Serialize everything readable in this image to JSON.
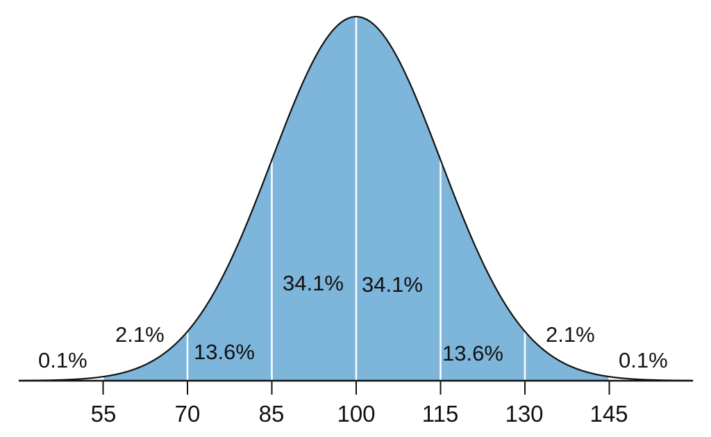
{
  "chart_data": {
    "type": "area",
    "title": "",
    "xlabel": "",
    "ylabel": "",
    "distribution": "normal",
    "mean": 100,
    "sd": 15,
    "xlim": [
      40,
      160
    ],
    "x_ticks": [
      55,
      70,
      85,
      100,
      115,
      130,
      145
    ],
    "x_tick_labels": [
      "55",
      "70",
      "85",
      "100",
      "115",
      "130",
      "145"
    ],
    "grid": false,
    "fill_color": "#7eb5db",
    "line_color": "#111111",
    "separator_color": "#ffffff",
    "segments": [
      {
        "range": "<55",
        "label": "0.1%",
        "value": 0.1
      },
      {
        "range": "55-70",
        "label": "2.1%",
        "value": 2.1
      },
      {
        "range": "70-85",
        "label": "13.6%",
        "value": 13.6
      },
      {
        "range": "85-100",
        "label": "34.1%",
        "value": 34.1
      },
      {
        "range": "100-115",
        "label": "34.1%",
        "value": 34.1
      },
      {
        "range": "115-130",
        "label": "13.6%",
        "value": 13.6
      },
      {
        "range": "130-145",
        "label": "2.1%",
        "value": 2.1
      },
      {
        "range": ">145",
        "label": "0.1%",
        "value": 0.1
      }
    ]
  }
}
